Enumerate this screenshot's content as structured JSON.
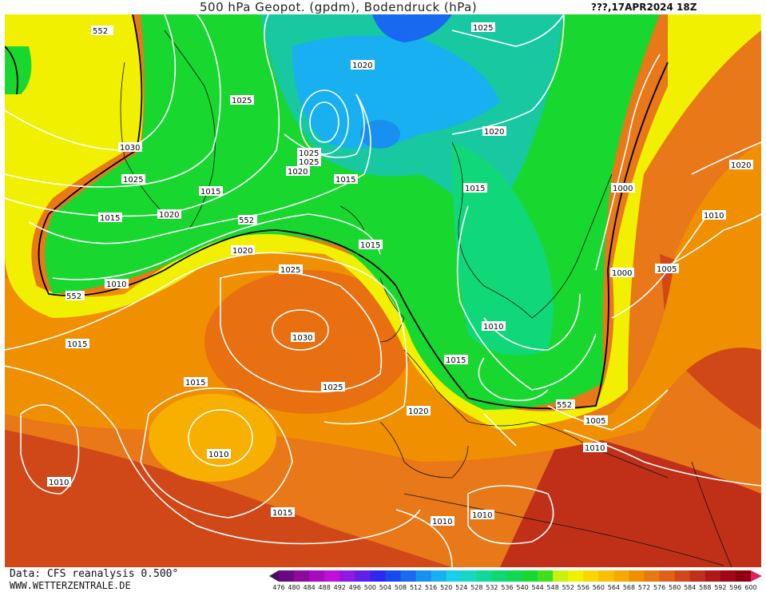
{
  "header": {
    "title": "500 hPa Geopot. (gpdm), Bodendruck (hPa)",
    "date": "???,17APR2024 18Z"
  },
  "footer": {
    "source": "Data: CFS reanalysis 0.500°",
    "url": "WWW.WETTERZENTRALE.DE"
  },
  "legend": {
    "ticks": [
      "476",
      "480",
      "484",
      "488",
      "492",
      "496",
      "500",
      "504",
      "508",
      "512",
      "516",
      "520",
      "524",
      "528",
      "532",
      "536",
      "540",
      "544",
      "548",
      "552",
      "556",
      "560",
      "564",
      "568",
      "572",
      "576",
      "580",
      "584",
      "588",
      "592",
      "596",
      "600"
    ],
    "colors": [
      "#4b0a5e",
      "#6a0a80",
      "#8c0aa0",
      "#a80ac0",
      "#c010d8",
      "#9018e0",
      "#6020e8",
      "#3028f0",
      "#1848f0",
      "#1868f0",
      "#1890f0",
      "#18b0f0",
      "#18d0e8",
      "#18d8c0",
      "#10d898",
      "#10d870",
      "#10d850",
      "#18d830",
      "#40e020",
      "#c8f010",
      "#f0f000",
      "#f8d800",
      "#f8c000",
      "#f8a800",
      "#f09000",
      "#e87810",
      "#e06018",
      "#d04818",
      "#c03018",
      "#b01818",
      "#a00818",
      "#900010",
      "#e02060"
    ]
  },
  "map_features": {
    "contour_552_label": "552",
    "pressure_labels": [
      "552",
      "1025",
      "1020",
      "1025",
      "1025",
      "1030",
      "1025",
      "1020",
      "1015",
      "1020",
      "1025",
      "1015",
      "1015",
      "1020",
      "552",
      "1010",
      "552",
      "1025",
      "1020",
      "1030",
      "1015",
      "1015",
      "1015",
      "1025",
      "1000",
      "1010",
      "1000",
      "1005",
      "1020",
      "1010",
      "1015",
      "1015",
      "1025",
      "552",
      "1005",
      "1010",
      "1010",
      "1010",
      "1020",
      "1015",
      "1010",
      "1010"
    ]
  }
}
